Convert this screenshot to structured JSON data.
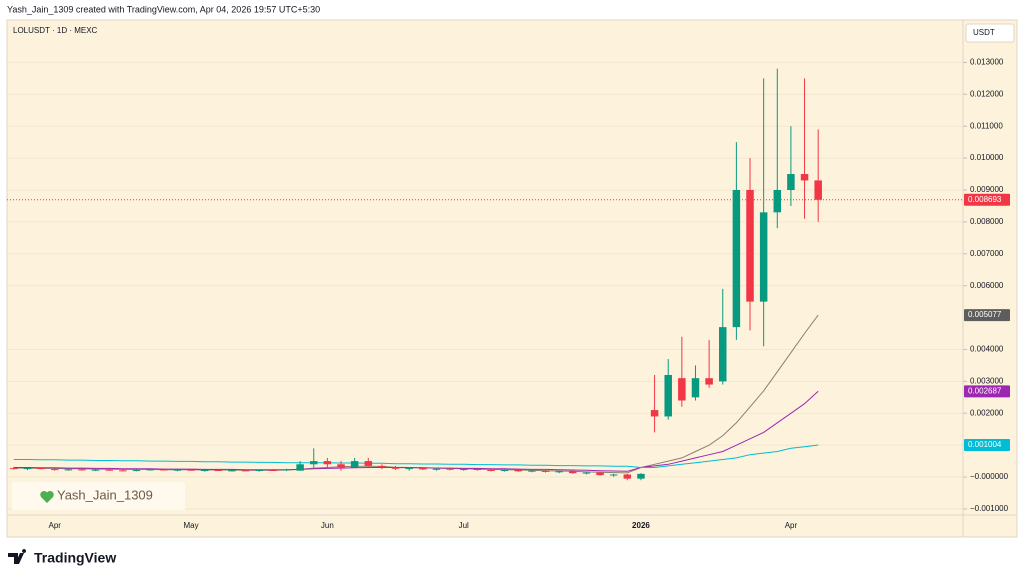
{
  "chart_data": {
    "type": "candlestick",
    "header": "Yash_Jain_1309 created with TradingView.com, Apr 04, 2026 19:57 UTC+5:30",
    "title": "LOLUSDT · 1D · MEXC",
    "currency": "USDT",
    "watermark": "Yash_Jain_1309",
    "brand": "TradingView",
    "up_color": "#089981",
    "down_color": "#f23645",
    "grid": true,
    "ylim": [
      -0.00119,
      0.01433
    ],
    "yticks": [
      {
        "value": -0.001,
        "label": "−0.001000"
      },
      {
        "value": 0,
        "label": "−0.000000"
      },
      {
        "value": 0.001,
        "label": "0.001000"
      },
      {
        "value": 0.002,
        "label": "0.002000"
      },
      {
        "value": 0.003,
        "label": "0.003000"
      },
      {
        "value": 0.004,
        "label": "0.004000"
      },
      {
        "value": 0.006,
        "label": "0.006000"
      },
      {
        "value": 0.007,
        "label": "0.007000"
      },
      {
        "value": 0.008,
        "label": "0.008000"
      },
      {
        "value": 0.009,
        "label": "0.009000"
      },
      {
        "value": 0.01,
        "label": "0.010000"
      },
      {
        "value": 0.011,
        "label": "0.011000"
      },
      {
        "value": 0.012,
        "label": "0.012000"
      },
      {
        "value": 0.013,
        "label": "0.013000"
      }
    ],
    "categories": [
      null,
      null,
      null,
      "Apr",
      null,
      null,
      null,
      null,
      null,
      null,
      null,
      null,
      null,
      "May",
      null,
      null,
      null,
      null,
      null,
      null,
      null,
      null,
      null,
      "Jun",
      null,
      null,
      null,
      null,
      null,
      null,
      null,
      null,
      null,
      "Jul",
      null,
      null,
      null,
      null,
      null,
      null,
      null,
      null,
      null,
      null,
      null,
      null,
      "2026",
      null,
      null,
      null,
      null,
      null,
      null,
      null,
      null,
      null,
      null,
      "Apr",
      null,
      null
    ],
    "ohlc": [
      [
        0.00028,
        0.00032,
        0.00024,
        0.00026
      ],
      [
        0.00026,
        0.0003,
        0.00022,
        0.00028
      ],
      [
        0.00028,
        0.0003,
        0.00024,
        0.00025
      ],
      [
        0.00025,
        0.00028,
        0.0002,
        0.00022
      ],
      [
        0.00022,
        0.00026,
        0.0002,
        0.00024
      ],
      [
        0.00024,
        0.00026,
        0.0002,
        0.00021
      ],
      [
        0.00021,
        0.00025,
        0.00019,
        0.00023
      ],
      [
        0.00023,
        0.00025,
        0.0002,
        0.00021
      ],
      [
        0.00021,
        0.00024,
        0.00018,
        0.0002
      ],
      [
        0.0002,
        0.00024,
        0.00018,
        0.00022
      ],
      [
        0.00022,
        0.00026,
        0.0002,
        0.00024
      ],
      [
        0.00024,
        0.00027,
        0.0002,
        0.00021
      ],
      [
        0.00021,
        0.00024,
        0.00018,
        0.00023
      ],
      [
        0.00023,
        0.00026,
        0.0002,
        0.0002
      ],
      [
        0.0002,
        0.00023,
        0.00017,
        0.00022
      ],
      [
        0.00022,
        0.00025,
        0.00019,
        0.00019
      ],
      [
        0.00019,
        0.00023,
        0.00017,
        0.00021
      ],
      [
        0.00021,
        0.00024,
        0.00018,
        0.0002
      ],
      [
        0.0002,
        0.00023,
        0.00017,
        0.00022
      ],
      [
        0.00022,
        0.00025,
        0.0002,
        0.00021
      ],
      [
        0.00021,
        0.00026,
        0.00019,
        0.00024
      ],
      [
        0.0002,
        0.0005,
        0.0002,
        0.0004
      ],
      [
        0.0004,
        0.0009,
        0.0003,
        0.0005
      ],
      [
        0.0005,
        0.0006,
        0.0003,
        0.0004
      ],
      [
        0.0004,
        0.0005,
        0.0002,
        0.0003
      ],
      [
        0.0003,
        0.0006,
        0.0003,
        0.0005
      ],
      [
        0.0005,
        0.0006,
        0.0003,
        0.00035
      ],
      [
        0.00035,
        0.0004,
        0.00025,
        0.0003
      ],
      [
        0.0003,
        0.00035,
        0.00022,
        0.00026
      ],
      [
        0.00026,
        0.0003,
        0.0002,
        0.00028
      ],
      [
        0.00028,
        0.0003,
        0.00022,
        0.00024
      ],
      [
        0.00024,
        0.00028,
        0.0002,
        0.00026
      ],
      [
        0.00026,
        0.00029,
        0.00021,
        0.00023
      ],
      [
        0.00023,
        0.00027,
        0.0002,
        0.00025
      ],
      [
        0.00025,
        0.00027,
        0.0002,
        0.00022
      ],
      [
        0.00022,
        0.00025,
        0.00018,
        0.0002
      ],
      [
        0.0002,
        0.00024,
        0.00017,
        0.00022
      ],
      [
        0.00022,
        0.00024,
        0.00016,
        0.00018
      ],
      [
        0.00018,
        0.00022,
        0.00015,
        0.0002
      ],
      [
        0.0002,
        0.00022,
        0.00014,
        0.00016
      ],
      [
        0.00016,
        0.0002,
        0.00012,
        0.00018
      ],
      [
        0.00018,
        0.0002,
        0.0001,
        0.00012
      ],
      [
        0.00012,
        0.00016,
        8e-05,
        0.00014
      ],
      [
        0.00014,
        0.00016,
        4e-05,
        6e-05
      ],
      [
        6e-05,
        0.0001,
        1e-05,
        8e-05
      ],
      [
        8e-05,
        0.0001,
        -0.0001,
        -5e-05
      ],
      [
        -5e-05,
        0.00012,
        -0.0001,
        0.0001
      ],
      [
        0.0021,
        0.0032,
        0.0014,
        0.0019
      ],
      [
        0.0019,
        0.0037,
        0.0018,
        0.0032
      ],
      [
        0.0031,
        0.0044,
        0.0022,
        0.0024
      ],
      [
        0.0025,
        0.0035,
        0.0024,
        0.0031
      ],
      [
        0.0031,
        0.0043,
        0.0028,
        0.0029
      ],
      [
        0.003,
        0.0059,
        0.0029,
        0.0047
      ],
      [
        0.0047,
        0.0105,
        0.0043,
        0.009
      ],
      [
        0.009,
        0.01,
        0.0046,
        0.0055
      ],
      [
        0.0055,
        0.0125,
        0.0041,
        0.0083
      ],
      [
        0.0083,
        0.0128,
        0.0078,
        0.009
      ],
      [
        0.009,
        0.011,
        0.0085,
        0.0095
      ],
      [
        0.0095,
        0.0125,
        0.0081,
        0.0093
      ],
      [
        0.0093,
        0.0109,
        0.008,
        0.008693
      ]
    ],
    "series": [
      {
        "color": "#8c7e72",
        "values": [
          0.00028,
          0.00028,
          0.00027,
          0.00027,
          0.00026,
          0.00026,
          0.00025,
          0.00025,
          0.00024,
          0.00024,
          0.00024,
          0.00023,
          0.00023,
          0.00023,
          0.00022,
          0.00022,
          0.00022,
          0.00021,
          0.00021,
          0.00021,
          0.00022,
          0.00024,
          0.00028,
          0.0003,
          0.00032,
          0.00034,
          0.00034,
          0.00033,
          0.00031,
          0.0003,
          0.00029,
          0.00028,
          0.00027,
          0.00026,
          0.00025,
          0.00024,
          0.00023,
          0.00022,
          0.00021,
          0.0002,
          0.00019,
          0.00018,
          0.00016,
          0.00015,
          0.00014,
          0.00013,
          0.0003,
          0.0004,
          0.0005,
          0.0006,
          0.0008,
          0.001,
          0.0013,
          0.0017,
          0.0022,
          0.0027,
          0.0033,
          0.0039,
          0.0045,
          0.005077
        ]
      },
      {
        "color": "#9c27b0",
        "values": [
          0.0003,
          0.0003,
          0.00029,
          0.00029,
          0.00028,
          0.00028,
          0.00027,
          0.00027,
          0.00026,
          0.00026,
          0.00026,
          0.00025,
          0.00025,
          0.00025,
          0.00024,
          0.00024,
          0.00024,
          0.00023,
          0.00023,
          0.00023,
          0.00023,
          0.00024,
          0.00026,
          0.00027,
          0.00028,
          0.00029,
          0.0003,
          0.0003,
          0.0003,
          0.00029,
          0.00029,
          0.00028,
          0.00028,
          0.00027,
          0.00027,
          0.00026,
          0.00026,
          0.00025,
          0.00024,
          0.00024,
          0.00023,
          0.00022,
          0.00021,
          0.0002,
          0.00019,
          0.00018,
          0.0003,
          0.00035,
          0.0004,
          0.0005,
          0.0006,
          0.0007,
          0.0008,
          0.001,
          0.0012,
          0.0014,
          0.0017,
          0.002,
          0.0023,
          0.002687
        ]
      },
      {
        "color": "#00bcd4",
        "values": [
          0.00055,
          0.00055,
          0.00054,
          0.00054,
          0.00053,
          0.00053,
          0.00052,
          0.00052,
          0.00051,
          0.00051,
          0.0005,
          0.0005,
          0.00049,
          0.00049,
          0.00048,
          0.00048,
          0.00047,
          0.00047,
          0.00046,
          0.00046,
          0.00045,
          0.00045,
          0.00045,
          0.00045,
          0.00044,
          0.00044,
          0.00043,
          0.00043,
          0.00042,
          0.00042,
          0.00041,
          0.00041,
          0.0004,
          0.0004,
          0.00039,
          0.00039,
          0.00038,
          0.00038,
          0.00037,
          0.00037,
          0.00036,
          0.00036,
          0.00035,
          0.00035,
          0.00034,
          0.00034,
          0.0003,
          0.0003,
          0.00035,
          0.0004,
          0.00045,
          0.0005,
          0.00055,
          0.0006,
          0.0007,
          0.00075,
          0.0008,
          0.0009,
          0.00095,
          0.001004
        ]
      }
    ]
  }
}
